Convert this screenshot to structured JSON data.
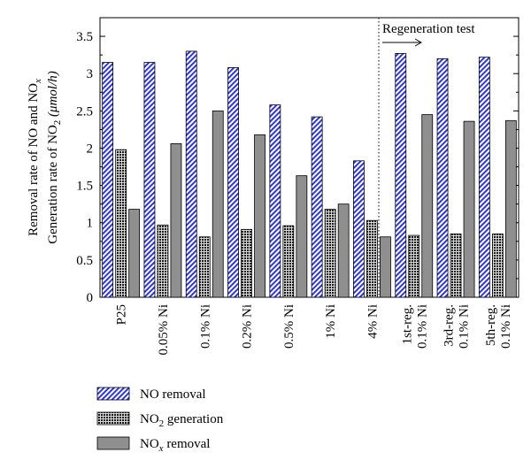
{
  "chart_data": {
    "type": "bar",
    "ylabel_line1": "Removal rate of NO and NO",
    "ylabel_line1_sub": "x",
    "ylabel_line2": "Generation rate of NO",
    "ylabel_line2_sub": "2",
    "ylabel_line2_unit": "(μmol/h)",
    "ylim": [
      0,
      3.75
    ],
    "yticks": [
      "0",
      "0.5",
      "1",
      "1.5",
      "2",
      "2.5",
      "3",
      "3.5"
    ],
    "grid": false,
    "annotation": "Regeneration test",
    "categories": [
      [
        "P25"
      ],
      [
        "0.05% Ni"
      ],
      [
        "0.1% Ni"
      ],
      [
        "0.2% Ni"
      ],
      [
        "0.5% Ni"
      ],
      [
        "1% Ni"
      ],
      [
        "4% Ni"
      ],
      [
        "1st-reg.",
        "0.1% Ni"
      ],
      [
        "3rd-reg.",
        "0.1% Ni"
      ],
      [
        "5th-reg.",
        "0.1% Ni"
      ]
    ],
    "series": [
      {
        "name": "NO removal",
        "values": [
          3.15,
          3.15,
          3.3,
          3.08,
          2.58,
          2.42,
          1.83,
          3.27,
          3.2,
          3.22
        ]
      },
      {
        "name": "NO2 generation",
        "values": [
          1.98,
          0.97,
          0.81,
          0.91,
          0.96,
          1.18,
          1.03,
          0.83,
          0.85,
          0.85
        ]
      },
      {
        "name": "NOx removal",
        "values": [
          1.18,
          2.06,
          2.5,
          2.18,
          1.63,
          1.25,
          0.81,
          2.45,
          2.36,
          2.37
        ]
      }
    ],
    "legend": {
      "placement": "bottom-left",
      "items": [
        {
          "main": "NO removal",
          "sub": "",
          "rest": ""
        },
        {
          "main": "NO",
          "sub": "2",
          "rest": " generation"
        },
        {
          "main": "NO",
          "sub": "x",
          "rest": " removal"
        }
      ]
    }
  }
}
